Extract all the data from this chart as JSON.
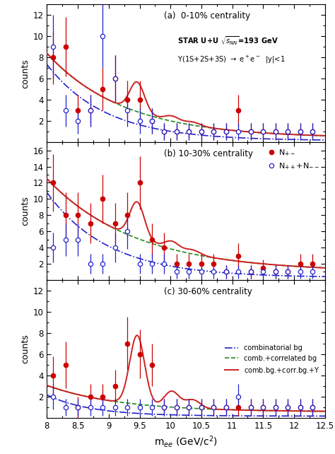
{
  "xlim": [
    8.0,
    12.5
  ],
  "xlabel": "m$_{ee}$ (GeV/c$^{2}$)",
  "panels": [
    {
      "label": "(a)  0-10% centrality",
      "ylim": [
        0,
        13
      ],
      "yticks": [
        2,
        4,
        6,
        8,
        10,
        12
      ],
      "show_info": true,
      "show_legend_lines": false,
      "show_legend_markers": false,
      "data_pm": {
        "x": [
          8.1,
          8.3,
          8.5,
          8.7,
          8.9,
          9.1,
          9.3,
          9.5,
          9.7,
          9.9,
          10.1,
          10.3,
          10.5,
          10.7,
          10.9,
          11.1,
          11.3,
          11.5,
          11.7,
          11.9,
          12.1,
          12.3
        ],
        "y": [
          8.0,
          9.0,
          3.0,
          3.0,
          5.0,
          6.0,
          4.0,
          4.0,
          2.0,
          1.0,
          1.0,
          1.0,
          1.0,
          1.0,
          1.0,
          3.0,
          1.0,
          1.0,
          1.0,
          1.0,
          1.0,
          1.0
        ],
        "yerr": [
          2.5,
          2.8,
          1.5,
          1.5,
          2.0,
          2.2,
          1.8,
          1.8,
          1.2,
          0.8,
          0.8,
          0.8,
          0.8,
          0.8,
          0.8,
          1.5,
          0.8,
          0.8,
          0.8,
          0.8,
          0.8,
          0.8
        ]
      },
      "data_like": {
        "x": [
          8.1,
          8.3,
          8.5,
          8.7,
          8.9,
          9.1,
          9.3,
          9.5,
          9.7,
          9.9,
          10.1,
          10.3,
          10.5,
          10.7,
          10.9,
          11.1,
          11.3,
          11.5,
          11.7,
          11.9,
          12.1,
          12.3
        ],
        "y": [
          9.0,
          3.0,
          2.0,
          3.0,
          10.0,
          6.0,
          3.0,
          2.0,
          2.0,
          1.0,
          1.0,
          1.0,
          1.0,
          1.0,
          1.0,
          1.0,
          1.0,
          1.0,
          1.0,
          1.0,
          1.0,
          1.0
        ],
        "yerr": [
          3.0,
          1.5,
          1.2,
          1.5,
          3.0,
          2.2,
          1.5,
          1.2,
          1.2,
          0.8,
          0.8,
          0.8,
          0.8,
          0.8,
          0.8,
          0.8,
          0.8,
          0.8,
          0.8,
          0.8,
          0.8,
          0.8
        ]
      },
      "comb_bg": {
        "A": 7.2,
        "lam": 1.05,
        "off": 0.15
      },
      "comb_corr": {
        "A": 8.0,
        "lam": 0.8,
        "off": 0.4
      },
      "ups": {
        "amp1": 2.8,
        "amp2": 0.5,
        "amp3": 0.3
      }
    },
    {
      "label": "(b) 10-30% centrality",
      "ylim": [
        0,
        17
      ],
      "yticks": [
        2,
        4,
        6,
        8,
        10,
        12,
        14,
        16
      ],
      "show_info": false,
      "show_legend_lines": false,
      "show_legend_markers": true,
      "data_pm": {
        "x": [
          8.1,
          8.3,
          8.5,
          8.7,
          8.9,
          9.1,
          9.3,
          9.5,
          9.7,
          9.9,
          10.1,
          10.3,
          10.5,
          10.7,
          10.9,
          11.1,
          11.3,
          11.5,
          11.7,
          11.9,
          12.1,
          12.3
        ],
        "y": [
          12.0,
          8.0,
          8.0,
          7.0,
          10.0,
          7.0,
          8.0,
          12.0,
          5.0,
          4.0,
          2.0,
          2.0,
          2.0,
          2.0,
          1.0,
          3.0,
          1.0,
          1.5,
          1.0,
          1.0,
          2.0,
          2.0
        ],
        "yerr": [
          3.5,
          2.8,
          2.8,
          2.5,
          3.0,
          2.5,
          2.8,
          3.3,
          2.0,
          1.8,
          1.2,
          1.2,
          1.2,
          1.2,
          0.8,
          1.5,
          0.8,
          1.0,
          0.8,
          0.8,
          1.2,
          1.2
        ]
      },
      "data_like": {
        "x": [
          8.1,
          8.3,
          8.5,
          8.7,
          8.9,
          9.1,
          9.3,
          9.5,
          9.7,
          9.9,
          10.1,
          10.3,
          10.5,
          10.7,
          10.9,
          11.1,
          11.3,
          11.5,
          11.7,
          11.9,
          12.1,
          12.3
        ],
        "y": [
          4.0,
          5.0,
          5.0,
          2.0,
          2.0,
          4.0,
          6.0,
          2.0,
          2.0,
          2.0,
          1.0,
          1.0,
          1.0,
          1.0,
          1.0,
          1.0,
          1.0,
          1.0,
          1.0,
          1.0,
          1.0,
          1.0
        ],
        "yerr": [
          1.8,
          2.0,
          2.0,
          1.2,
          1.2,
          1.8,
          2.2,
          1.2,
          1.2,
          1.2,
          0.8,
          0.8,
          0.8,
          0.8,
          0.8,
          0.8,
          0.8,
          0.8,
          0.8,
          0.8,
          0.8,
          0.8
        ]
      },
      "comb_bg": {
        "A": 10.5,
        "lam": 1.0,
        "off": 0.3
      },
      "comb_corr": {
        "A": 11.5,
        "lam": 0.7,
        "off": 1.0
      },
      "ups": {
        "amp1": 4.5,
        "amp2": 1.0,
        "amp3": 0.5
      }
    },
    {
      "label": "(c) 30-60% centrality",
      "ylim": [
        0,
        13
      ],
      "yticks": [
        2,
        4,
        6,
        8,
        10,
        12
      ],
      "show_info": false,
      "show_legend_lines": true,
      "show_legend_markers": false,
      "data_pm": {
        "x": [
          8.1,
          8.3,
          8.5,
          8.7,
          8.9,
          9.1,
          9.3,
          9.5,
          9.7,
          9.9,
          10.1,
          10.3,
          10.5,
          10.7,
          10.9,
          11.1,
          11.3,
          11.5,
          11.7,
          11.9,
          12.1,
          12.3
        ],
        "y": [
          4.0,
          5.0,
          1.0,
          2.0,
          2.0,
          3.0,
          7.0,
          6.0,
          5.0,
          1.0,
          1.0,
          1.0,
          1.0,
          1.0,
          1.0,
          1.0,
          1.0,
          1.0,
          1.0,
          1.0,
          1.0,
          1.0
        ],
        "yerr": [
          1.8,
          2.2,
          1.0,
          1.2,
          1.2,
          1.5,
          2.5,
          2.3,
          2.0,
          0.8,
          0.8,
          0.8,
          0.8,
          0.8,
          0.8,
          0.8,
          0.8,
          0.8,
          0.8,
          0.8,
          0.8,
          0.8
        ]
      },
      "data_like": {
        "x": [
          8.1,
          8.3,
          8.5,
          8.7,
          8.9,
          9.1,
          9.3,
          9.5,
          9.7,
          9.9,
          10.1,
          10.3,
          10.5,
          10.7,
          10.9,
          11.1,
          11.3,
          11.5,
          11.7,
          11.9,
          12.1,
          12.3
        ],
        "y": [
          2.0,
          1.0,
          1.0,
          1.0,
          1.0,
          1.0,
          1.0,
          1.0,
          1.0,
          1.0,
          1.0,
          1.0,
          1.0,
          1.0,
          1.0,
          2.0,
          1.0,
          1.0,
          1.0,
          1.0,
          1.0,
          1.0
        ],
        "yerr": [
          1.2,
          0.8,
          0.8,
          0.8,
          0.8,
          0.8,
          0.8,
          0.8,
          0.8,
          0.8,
          0.8,
          0.8,
          0.8,
          0.8,
          0.8,
          1.2,
          0.8,
          0.8,
          0.8,
          0.8,
          0.8,
          0.8
        ]
      },
      "comb_bg": {
        "A": 2.0,
        "lam": 1.4,
        "off": 0.15
      },
      "comb_corr": {
        "A": 2.5,
        "lam": 0.85,
        "off": 0.55
      },
      "ups": {
        "amp1": 6.5,
        "amp2": 1.5,
        "amp3": 0.8
      }
    }
  ],
  "curve_colors": {
    "comb_bg": "#2222CC",
    "comb_corr": "#228822",
    "total": "#CC2222"
  },
  "marker_color_pm": "#CC0000",
  "marker_color_like": "#2222CC",
  "ups_masses": [
    9.46,
    10.02,
    10.36
  ],
  "ups_sigma": 0.12
}
